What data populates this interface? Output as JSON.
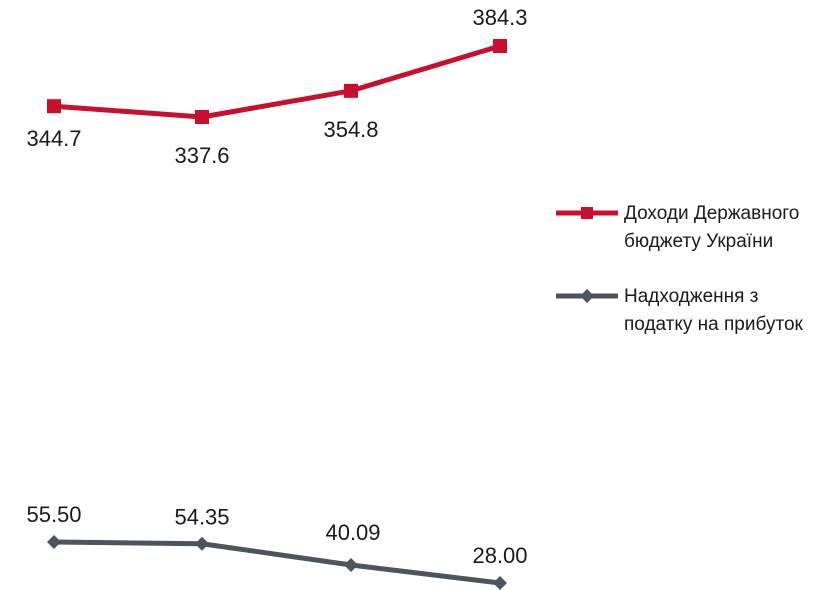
{
  "chart_data": {
    "type": "line",
    "categories": [
      "",
      "",
      "",
      ""
    ],
    "series": [
      {
        "name": "Доходи Державного бюджету України",
        "values": [
          344.7,
          337.6,
          354.8,
          384.3
        ],
        "labels": [
          "344.7",
          "337.6",
          "354.8",
          "384.3"
        ],
        "color": "#c8102e",
        "marker": "square"
      },
      {
        "name": "Надходження з податку на прибуток",
        "values": [
          55.5,
          54.35,
          40.09,
          28.0
        ],
        "labels": [
          "55.50",
          "54.35",
          "40.09",
          "28.00"
        ],
        "color": "#4a5560",
        "marker": "diamond"
      }
    ],
    "legend_position": "right",
    "axes_visible": false,
    "grid": false
  }
}
